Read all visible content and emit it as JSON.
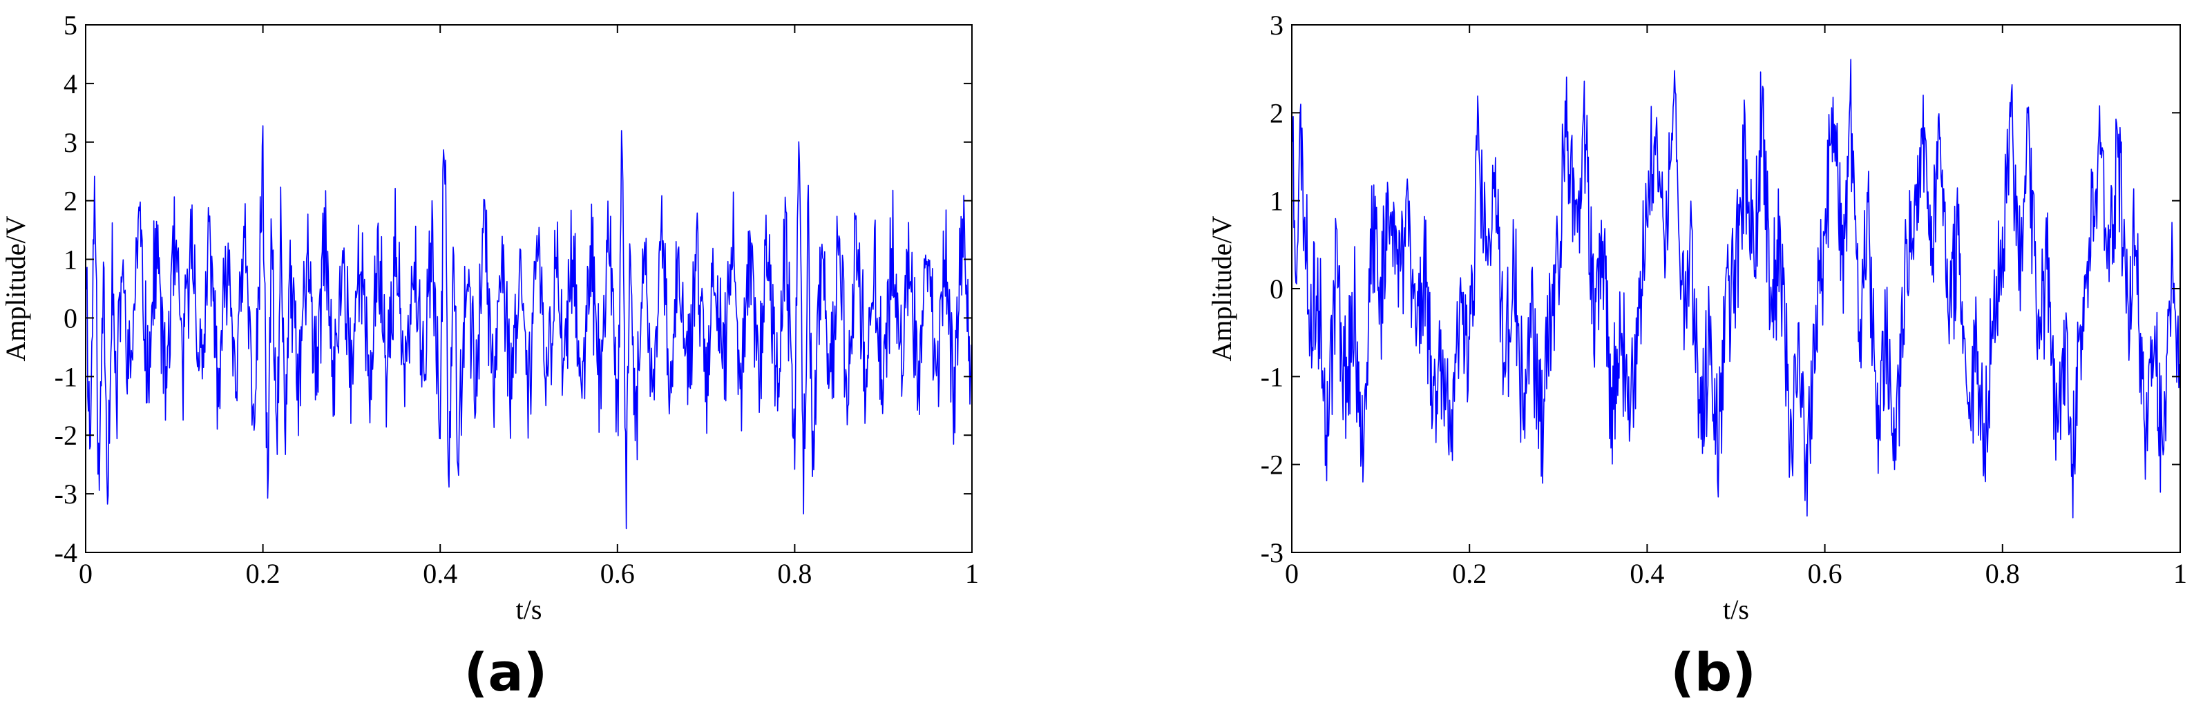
{
  "colors": {
    "signal": "#0000ff",
    "axes": "#000000",
    "background": "#ffffff"
  },
  "chart_data": [
    {
      "type": "line",
      "panel_label": "(a)",
      "xlabel": "t/s",
      "ylabel": "Amplitude/V",
      "xlim": [
        0,
        1
      ],
      "ylim": [
        -4,
        5
      ],
      "xticks": [
        0,
        0.2,
        0.4,
        0.6,
        0.8,
        1
      ],
      "xtick_labels": [
        "0",
        "0.2",
        "0.4",
        "0.6",
        "0.8",
        "1"
      ],
      "yticks": [
        -4,
        -3,
        -2,
        -1,
        0,
        1,
        2,
        3,
        4,
        5
      ],
      "ytick_labels": [
        "-4",
        "-3",
        "-2",
        "-1",
        "0",
        "1",
        "2",
        "3",
        "4",
        "5"
      ],
      "grid": false,
      "series": [
        {
          "color": "#0000ff",
          "description": "noisy vibration signal with periodic impulses of about 4 V every 0.2 s",
          "x": [
            0,
            0.005,
            0.01,
            0.015,
            0.02,
            0.025,
            0.03,
            0.035,
            0.04,
            0.05,
            0.06,
            0.07,
            0.08,
            0.09,
            0.1,
            0.11,
            0.12,
            0.13,
            0.14,
            0.15,
            0.16,
            0.17,
            0.18,
            0.19,
            0.2,
            0.205,
            0.21,
            0.215,
            0.22,
            0.225,
            0.23,
            0.24,
            0.25,
            0.26,
            0.27,
            0.28,
            0.29,
            0.3,
            0.31,
            0.32,
            0.33,
            0.34,
            0.35,
            0.36,
            0.37,
            0.38,
            0.39,
            0.4,
            0.405,
            0.41,
            0.415,
            0.42,
            0.43,
            0.44,
            0.45,
            0.46,
            0.47,
            0.48,
            0.49,
            0.5,
            0.51,
            0.52,
            0.53,
            0.54,
            0.55,
            0.56,
            0.57,
            0.58,
            0.59,
            0.6,
            0.605,
            0.61,
            0.615,
            0.62,
            0.63,
            0.64,
            0.65,
            0.66,
            0.67,
            0.68,
            0.69,
            0.7,
            0.71,
            0.72,
            0.73,
            0.74,
            0.75,
            0.76,
            0.77,
            0.78,
            0.79,
            0.8,
            0.805,
            0.81,
            0.815,
            0.82,
            0.83,
            0.84,
            0.85,
            0.86,
            0.87,
            0.88,
            0.89,
            0.9,
            0.91,
            0.92,
            0.93,
            0.94,
            0.95,
            0.96,
            0.97,
            0.98,
            0.99,
            1
          ],
          "y": [
            1.6,
            -2.8,
            2.7,
            -3.7,
            1.2,
            -3.3,
            0.9,
            -2.1,
            1.1,
            -1.3,
            2.0,
            -1.0,
            1.4,
            -1.4,
            1.3,
            -0.9,
            1.6,
            -1.2,
            1.5,
            -1.6,
            1.2,
            -1.1,
            1.5,
            -2.0,
            2.9,
            -3.5,
            2.0,
            -3.0,
            1.3,
            -2.2,
            1.0,
            -1.6,
            1.4,
            -1.3,
            1.6,
            -1.5,
            1.3,
            -1.0,
            1.5,
            -1.6,
            1.4,
            -1.2,
            1.6,
            -1.5,
            1.1,
            -1.3,
            1.6,
            -2.2,
            4.0,
            -3.6,
            2.3,
            -2.5,
            1.1,
            -1.4,
            1.6,
            -1.3,
            1.5,
            -1.5,
            1.2,
            -1.2,
            1.5,
            -1.6,
            1.3,
            -1.0,
            1.6,
            -1.5,
            1.2,
            -1.4,
            1.6,
            -2.0,
            3.3,
            -3.2,
            1.9,
            -2.6,
            1.0,
            -1.4,
            1.5,
            -1.6,
            1.3,
            -1.2,
            1.6,
            -1.4,
            1.2,
            -1.0,
            1.5,
            -1.6,
            1.3,
            -1.2,
            1.6,
            -1.5,
            1.4,
            -2.4,
            3.6,
            -3.7,
            2.2,
            -2.6,
            1.1,
            -1.5,
            1.4,
            -1.4,
            1.6,
            -1.2,
            1.3,
            -1.6,
            1.5,
            -1.1,
            1.4,
            -1.5,
            1.7,
            -1.4,
            1.2,
            -1.5,
            2.0,
            -1.2
          ]
        }
      ]
    },
    {
      "type": "line",
      "panel_label": "(b)",
      "xlabel": "t/s",
      "ylabel": "Amplitude/V",
      "xlim": [
        0,
        1
      ],
      "ylim": [
        -3,
        3
      ],
      "xticks": [
        0,
        0.2,
        0.4,
        0.6,
        0.8,
        1
      ],
      "xtick_labels": [
        "0",
        "0.2",
        "0.4",
        "0.6",
        "0.8",
        "1"
      ],
      "yticks": [
        -3,
        -2,
        -1,
        0,
        1,
        2,
        3
      ],
      "ytick_labels": [
        "-3",
        "-2",
        "-1",
        "0",
        "1",
        "2",
        "3"
      ],
      "grid": false,
      "series": [
        {
          "color": "#0000ff",
          "description": "noisy sinusoid of about 10 Hz and 1.2 V amplitude",
          "x": [
            0,
            0.005,
            0.01,
            0.02,
            0.03,
            0.04,
            0.05,
            0.06,
            0.07,
            0.08,
            0.09,
            0.1,
            0.11,
            0.12,
            0.13,
            0.14,
            0.15,
            0.16,
            0.17,
            0.18,
            0.19,
            0.2,
            0.21,
            0.22,
            0.23,
            0.24,
            0.25,
            0.26,
            0.27,
            0.28,
            0.29,
            0.3,
            0.31,
            0.32,
            0.33,
            0.34,
            0.35,
            0.36,
            0.37,
            0.38,
            0.39,
            0.4,
            0.41,
            0.42,
            0.43,
            0.44,
            0.45,
            0.46,
            0.47,
            0.48,
            0.49,
            0.5,
            0.51,
            0.52,
            0.53,
            0.54,
            0.55,
            0.56,
            0.57,
            0.58,
            0.59,
            0.6,
            0.61,
            0.62,
            0.63,
            0.64,
            0.65,
            0.66,
            0.67,
            0.68,
            0.69,
            0.7,
            0.71,
            0.72,
            0.73,
            0.74,
            0.75,
            0.76,
            0.77,
            0.78,
            0.79,
            0.8,
            0.81,
            0.82,
            0.83,
            0.84,
            0.85,
            0.86,
            0.87,
            0.88,
            0.89,
            0.9,
            0.91,
            0.92,
            0.93,
            0.94,
            0.95,
            0.96,
            0.97,
            0.98,
            0.99,
            1
          ],
          "y": [
            2.3,
            0.4,
            2.1,
            -0.3,
            -0.1,
            -1.8,
            0.4,
            -1.3,
            -0.4,
            -1.9,
            0.6,
            -0.2,
            1.5,
            0.1,
            1.3,
            -0.5,
            0.2,
            -1.5,
            -0.7,
            -2.2,
            -0.3,
            -0.7,
            1.8,
            0.3,
            1.2,
            -1.0,
            0.2,
            -1.6,
            -0.4,
            -2.0,
            -0.5,
            0.2,
            2.4,
            0.6,
            1.9,
            -0.4,
            0.6,
            -1.8,
            -0.2,
            -2.0,
            -0.4,
            1.0,
            2.3,
            0.3,
            2.7,
            -0.2,
            0.5,
            -1.9,
            -0.6,
            -2.2,
            -0.2,
            0.4,
            2.0,
            0.3,
            2.4,
            -0.4,
            0.6,
            -2.0,
            -0.8,
            -2.4,
            -0.3,
            0.5,
            2.2,
            0.3,
            2.3,
            -0.5,
            0.7,
            -1.9,
            -0.6,
            -2.2,
            -0.1,
            0.6,
            2.0,
            0.4,
            2.1,
            -0.5,
            0.5,
            -1.8,
            -0.6,
            -2.1,
            -0.3,
            0.7,
            2.3,
            0.4,
            2.0,
            -0.6,
            0.4,
            -2.0,
            -0.5,
            -2.3,
            -0.2,
            0.6,
            2.1,
            0.3,
            2.0,
            -0.5,
            0.6,
            -1.8,
            -0.4,
            -2.1,
            0.1,
            -1.0
          ]
        }
      ]
    }
  ]
}
